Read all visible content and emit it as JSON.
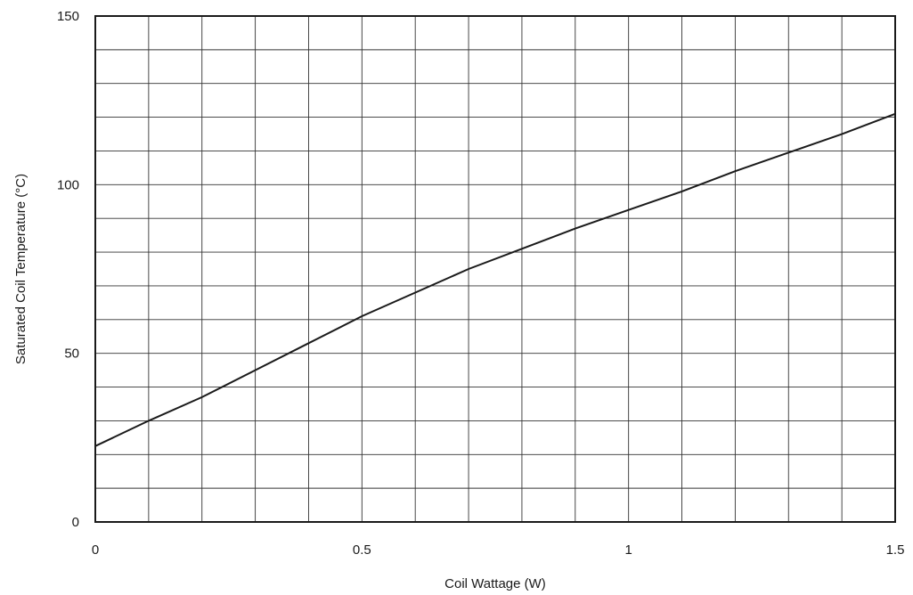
{
  "chart_data": {
    "type": "line",
    "title": "",
    "xlabel": "Coil Wattage  (W)",
    "ylabel": "Saturated Coil Temperature (°C)",
    "xlim": [
      0,
      1.5
    ],
    "ylim": [
      0,
      150
    ],
    "x_ticks": [
      {
        "value": 0,
        "label": "0"
      },
      {
        "value": 0.5,
        "label": "0.5"
      },
      {
        "value": 1,
        "label": "1"
      },
      {
        "value": 1.5,
        "label": "1.5"
      }
    ],
    "y_ticks": [
      {
        "value": 0,
        "label": "0"
      },
      {
        "value": 50,
        "label": "50"
      },
      {
        "value": 100,
        "label": "100"
      },
      {
        "value": 150,
        "label": "150"
      }
    ],
    "grid": true,
    "x_grid_step": 0.1,
    "y_grid_step": 10,
    "line_color": "#1a1a1a",
    "grid_color": "#333333",
    "series": [
      {
        "x": [
          0,
          0.1,
          0.2,
          0.3,
          0.4,
          0.5,
          0.6,
          0.7,
          0.8,
          0.9,
          1.0,
          1.1,
          1.2,
          1.3,
          1.4,
          1.5
        ],
        "values": [
          22.5,
          30,
          37,
          45,
          53,
          61,
          68,
          75,
          81,
          87,
          92.5,
          98,
          104,
          109.5,
          115,
          121
        ]
      }
    ]
  }
}
